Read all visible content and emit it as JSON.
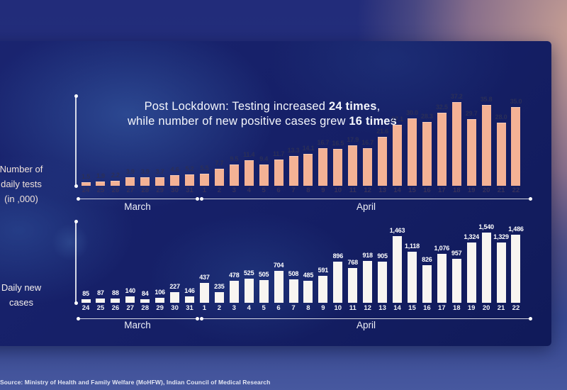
{
  "title": {
    "lines": [
      {
        "segments": [
          {
            "t": "Post Lockdown: Testing increased ",
            "b": false
          },
          {
            "t": "24 times",
            "b": true
          },
          {
            "t": ",",
            "b": false
          }
        ]
      },
      {
        "segments": [
          {
            "t": "while number of new positive cases grew ",
            "b": false
          },
          {
            "t": "16 times",
            "b": true
          }
        ]
      }
    ],
    "color": "#f4f6fc"
  },
  "source": "Source: Ministry of Health and Family Welfare (MoHFW), Indian Council of Medical Research",
  "colors": {
    "card_background": "#141e63",
    "bar_tests": "#f4b295",
    "bar_cases": "#f8f5f1",
    "axis_line": "#ffffff"
  },
  "chart_data": [
    {
      "type": "bar",
      "title": "Number of daily tests (in ,000)",
      "axis_label_lines": [
        "Number of",
        "daily tests",
        "(in ,000)"
      ],
      "axis_label_color": "#f0e2db",
      "categories": [
        "24",
        "25",
        "26",
        "27",
        "28",
        "29",
        "30",
        "31",
        "1",
        "2",
        "3",
        "4",
        "5",
        "6",
        "7",
        "8",
        "9",
        "10",
        "11",
        "12",
        "13",
        "14",
        "15",
        "16",
        "17",
        "18",
        "19",
        "20",
        "21",
        "22"
      ],
      "month_groups": [
        {
          "label": "March",
          "span": [
            0,
            7
          ]
        },
        {
          "label": "April",
          "span": [
            8,
            29
          ]
        }
      ],
      "values": [
        1.5,
        1.9,
        2.2,
        3.9,
        3.9,
        3.7,
        4.6,
        5.2,
        5.5,
        7.7,
        9.5,
        11.4,
        9.4,
        11.7,
        13.3,
        14.1,
        16.7,
        16.5,
        17.9,
        16.7,
        21.6,
        27.1,
        30.0,
        28.3,
        32.5,
        37.2,
        29.7,
        35.8,
        28.0,
        35.0
      ],
      "value_labels": [
        "1.5",
        "1.9",
        "2.2",
        "3.9",
        "3.9",
        "3.7",
        "4.6",
        "5.2",
        "5.5",
        "7.7",
        "9.5",
        "11.4",
        "9.4",
        "11.7",
        "13.3",
        "14.1",
        "16.7",
        "16.5",
        "17.9",
        "16.7",
        "21.6",
        "27.1",
        "30.0",
        "28.3",
        "32.5",
        "37.2",
        "29.7",
        "35.8",
        "28.0",
        "35.0"
      ],
      "ylim": [
        0,
        40
      ],
      "bar_color": "#f4b295",
      "value_label_color": "#2b2f58",
      "date_label_color": "#38325a",
      "grid": false,
      "legend": "none"
    },
    {
      "type": "bar",
      "title": "Daily new cases",
      "axis_label_lines": [
        "Daily new",
        "cases"
      ],
      "axis_label_color": "#f6f1ee",
      "categories": [
        "24",
        "25",
        "26",
        "27",
        "28",
        "29",
        "30",
        "31",
        "1",
        "2",
        "3",
        "4",
        "5",
        "6",
        "7",
        "8",
        "9",
        "10",
        "11",
        "12",
        "13",
        "14",
        "15",
        "16",
        "17",
        "18",
        "19",
        "20",
        "21",
        "22"
      ],
      "month_groups": [
        {
          "label": "March",
          "span": [
            0,
            7
          ]
        },
        {
          "label": "April",
          "span": [
            8,
            29
          ]
        }
      ],
      "values": [
        85,
        87,
        88,
        140,
        84,
        106,
        227,
        146,
        437,
        235,
        478,
        525,
        505,
        704,
        508,
        485,
        591,
        896,
        768,
        918,
        905,
        1463,
        1118,
        826,
        1076,
        957,
        1324,
        1540,
        1329,
        1486
      ],
      "value_labels": [
        "85",
        "87",
        "88",
        "140",
        "84",
        "106",
        "227",
        "146",
        "437",
        "235",
        "478",
        "525",
        "505",
        "704",
        "508",
        "485",
        "591",
        "896",
        "768",
        "918",
        "905",
        "1,463",
        "1,118",
        "826",
        "1,076",
        "957",
        "1,324",
        "1,540",
        "1,329",
        "1,486"
      ],
      "ylim": [
        0,
        1600
      ],
      "bar_color": "#f8f5f1",
      "value_label_color": "#ffffff",
      "date_label_color": "#f2f3f8",
      "grid": false,
      "legend": "none"
    }
  ]
}
